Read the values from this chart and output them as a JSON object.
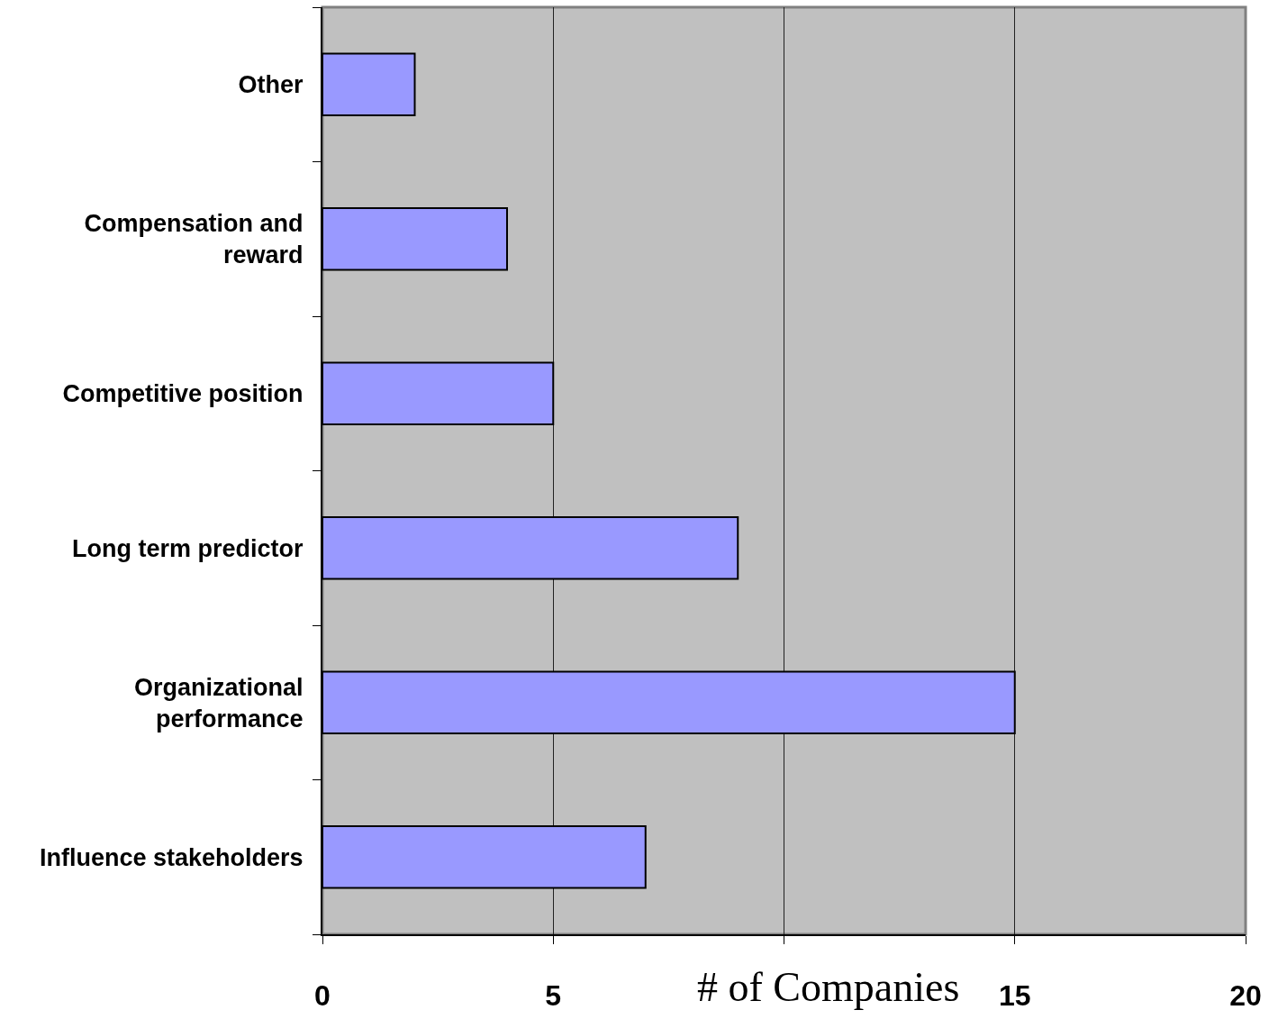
{
  "chart_data": {
    "type": "bar",
    "orientation": "horizontal",
    "categories": [
      "Other",
      "Compensation and\nreward",
      "Competitive position",
      "Long term predictor",
      "Organizational\nperformance",
      "Influence stakeholders"
    ],
    "values": [
      2,
      4,
      5,
      9,
      15,
      7
    ],
    "color": "#9999ff",
    "xlabel": "# of Companies",
    "xlim": [
      0,
      20
    ],
    "xticks": [
      0,
      5,
      {
        "value": 10,
        "label": null
      },
      15,
      20
    ],
    "grid": "x"
  }
}
